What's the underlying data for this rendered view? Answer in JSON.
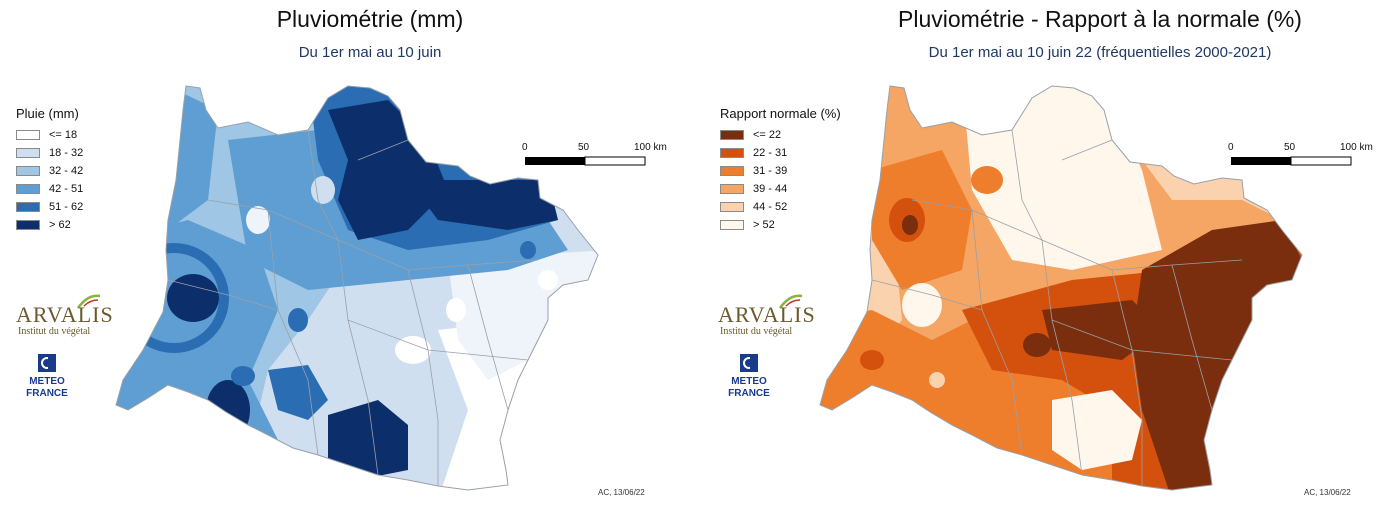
{
  "left": {
    "title": "Pluviométrie (mm)",
    "subtitle": "Du 1er mai au 10 juin",
    "legend_title": "Pluie (mm)",
    "legend": [
      {
        "label": "<= 18",
        "color": "#ffffff"
      },
      {
        "label": "18 - 32",
        "color": "#d0dff0"
      },
      {
        "label": "32 - 42",
        "color": "#9fc6e4"
      },
      {
        "label": "42 - 51",
        "color": "#5e9ed3"
      },
      {
        "label": "51 - 62",
        "color": "#2a6db3"
      },
      {
        "label": "> 62",
        "color": "#0c2f6b"
      }
    ],
    "scale": {
      "labels": [
        "0",
        "50",
        "100 km"
      ]
    },
    "footer": "AC, 13/06/22"
  },
  "right": {
    "title": "Pluviométrie - Rapport à la normale (%)",
    "subtitle": "Du 1er mai au 10 juin 22 (fréquentielles 2000-2021)",
    "legend_title": "Rapport normale (%)",
    "legend": [
      {
        "label": "<= 22",
        "color": "#7a2e0d"
      },
      {
        "label": "22 - 31",
        "color": "#d4500d"
      },
      {
        "label": "31 - 39",
        "color": "#ee7d2c"
      },
      {
        "label": "39 - 44",
        "color": "#f5a564"
      },
      {
        "label": "44 - 52",
        "color": "#fad2ad"
      },
      {
        "label": "> 52",
        "color": "#fff6ec"
      }
    ],
    "scale": {
      "labels": [
        "0",
        "50",
        "100 km"
      ]
    },
    "footer": "AC, 13/06/22"
  },
  "logos": {
    "arvalis_name": "ARVALIS",
    "arvalis_tagline": "Institut du végétal",
    "meteo_line1": "METEO",
    "meteo_line2": "FRANCE",
    "icons": [
      "arvalis-logo",
      "meteo-france-logo"
    ]
  }
}
